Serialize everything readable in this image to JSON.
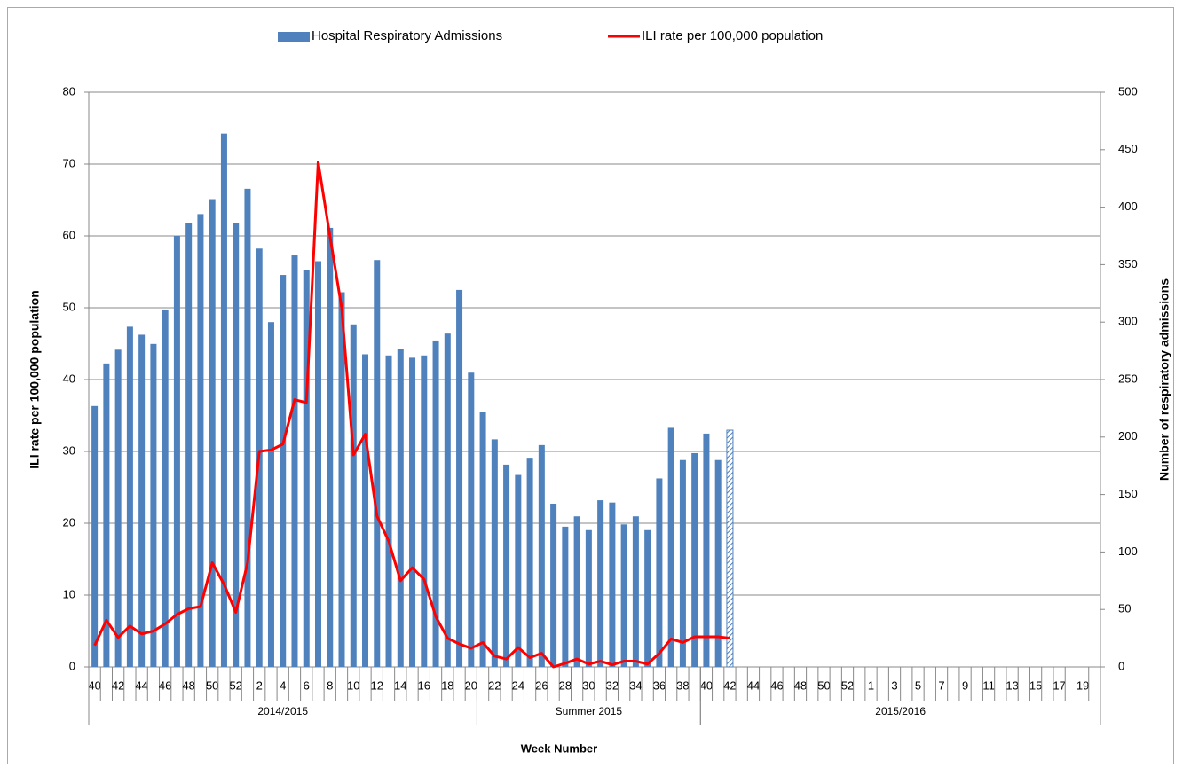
{
  "chart_data": {
    "type": "combo",
    "x_label": "Week Number",
    "y_label": "ILI rate per 100,000 population",
    "y2_label": "Number of respiratory admissions",
    "ylim": [
      0,
      80
    ],
    "yticks": [
      0,
      10,
      20,
      30,
      40,
      50,
      60,
      70,
      80
    ],
    "y2lim": [
      0,
      500
    ],
    "y2ticks": [
      0,
      50,
      100,
      150,
      200,
      250,
      300,
      350,
      400,
      450,
      500
    ],
    "grid": true,
    "legend": "top",
    "last_bar_provisional": true,
    "groups": [
      {
        "name": "2014/2015",
        "categories": [
          "40",
          null,
          "42",
          null,
          "44",
          null,
          "46",
          null,
          "48",
          null,
          "50",
          null,
          "52",
          null,
          "2",
          null,
          "4",
          null,
          "6",
          null,
          "8",
          null,
          "10",
          null,
          "12",
          null,
          "14",
          null,
          "16",
          null,
          "18",
          null,
          "20"
        ]
      },
      {
        "name": "Summer 2015",
        "categories": [
          null,
          "22",
          null,
          "24",
          null,
          "26",
          null,
          "28",
          null,
          "30",
          null,
          "32",
          null,
          "34",
          null,
          "36",
          null,
          "38",
          null
        ]
      },
      {
        "name": "2015/2016",
        "categories": [
          "40",
          null,
          "42",
          null,
          "44",
          null,
          "46",
          null,
          "48",
          null,
          "50",
          null,
          "52",
          null,
          "1",
          null,
          "3",
          null,
          "5",
          null,
          "7",
          null,
          "9",
          null,
          "11",
          null,
          "13",
          null,
          "15",
          null,
          "17",
          null,
          "19",
          null
        ]
      }
    ],
    "series": [
      {
        "name": "Hospital Respiratory Admissions",
        "type": "bar",
        "axis": "y2",
        "color": "#4f81bd",
        "values": [
          227,
          264,
          276,
          296,
          289,
          281,
          311,
          375,
          386,
          394,
          407,
          464,
          386,
          416,
          364,
          300,
          341,
          358,
          345,
          353,
          382,
          326,
          298,
          272,
          354,
          271,
          277,
          269,
          271,
          284,
          290,
          328,
          256,
          222,
          198,
          176,
          167,
          182,
          193,
          142,
          122,
          131,
          119,
          145,
          143,
          124,
          131,
          119,
          164,
          208,
          180,
          186,
          203,
          180,
          206,
          null,
          null,
          null,
          null,
          null,
          null,
          null,
          null,
          null,
          null,
          null,
          null,
          null,
          null,
          null,
          null,
          null,
          null,
          null,
          null,
          null,
          null,
          null,
          null,
          null,
          null,
          null,
          null,
          null,
          null,
          null
        ]
      },
      {
        "name": "ILI rate per 100,000 population",
        "type": "line",
        "axis": "y",
        "color": "#ff0000",
        "values": [
          3,
          6.5,
          4.1,
          5.7,
          4.6,
          5,
          6,
          7.3,
          8.1,
          8.4,
          14.5,
          11.5,
          7.6,
          14.5,
          30,
          30.2,
          31,
          37.2,
          36.8,
          70.3,
          60,
          50,
          29.5,
          32.4,
          21,
          17.5,
          12,
          13.8,
          12.2,
          7,
          4,
          3.2,
          2.6,
          3.4,
          1.5,
          1.1,
          2.7,
          1.3,
          1.9,
          0,
          0.5,
          1.1,
          0.4,
          0.8,
          0.3,
          0.8,
          0.8,
          0.4,
          1.9,
          3.9,
          3.4,
          4.2,
          4.2,
          4.2,
          4,
          null,
          null,
          null,
          null,
          null,
          null,
          null,
          null,
          null,
          null,
          null,
          null,
          null,
          null,
          null,
          null,
          null,
          null,
          null,
          null,
          null,
          null,
          null,
          null,
          null,
          null,
          null,
          null,
          null,
          null,
          null
        ]
      }
    ]
  }
}
